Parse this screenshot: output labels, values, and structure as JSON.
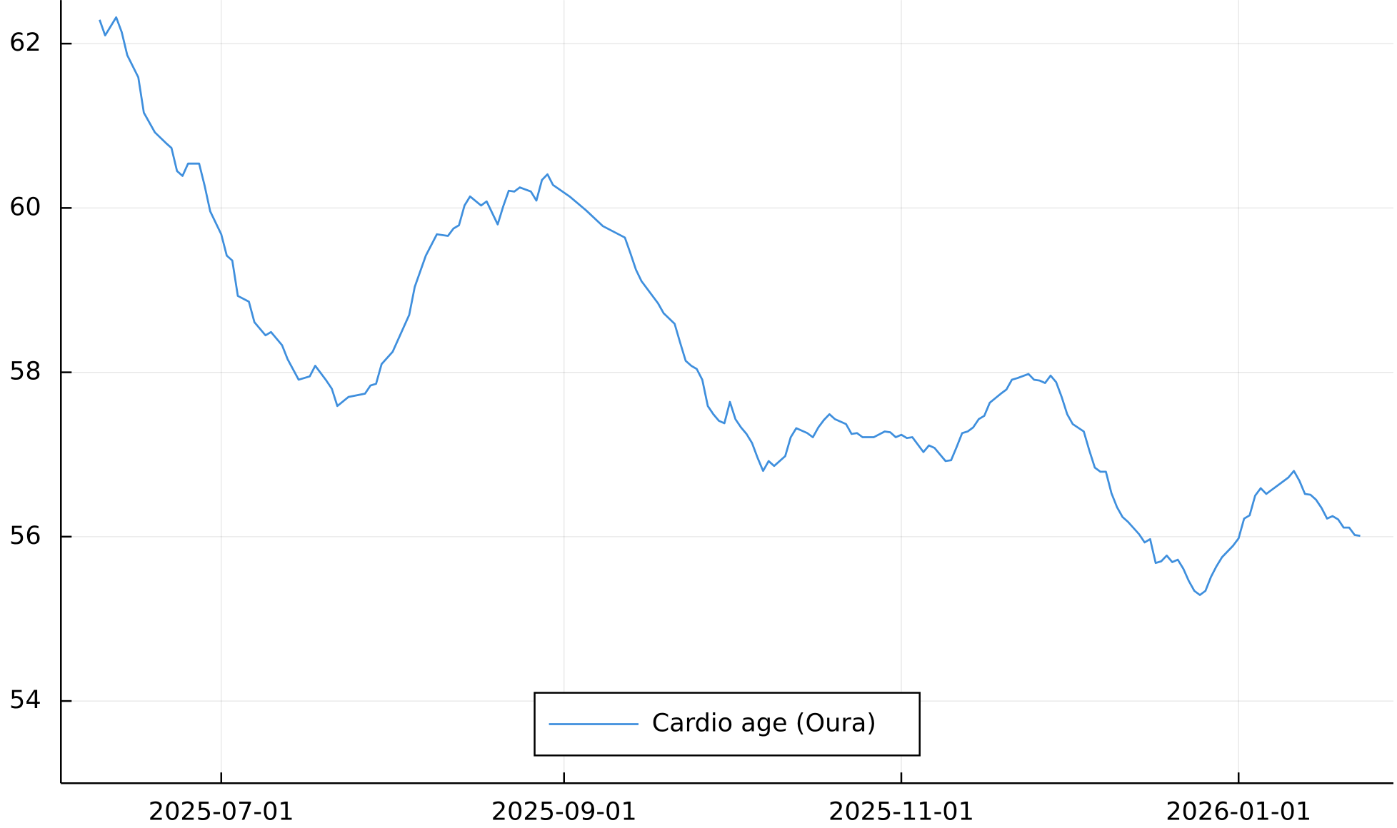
{
  "chart_data": {
    "type": "line",
    "legend": "bottom",
    "grid": true,
    "xlim": [
      "2025-06-02",
      "2026-01-29"
    ],
    "xticks": [
      "2025-07-01",
      "2025-09-01",
      "2025-11-01",
      "2026-01-01"
    ],
    "ylim": [
      53.0,
      62.53
    ],
    "yticks": [
      54,
      56,
      58,
      60,
      62
    ],
    "x": [
      "2025-06-09",
      "2025-06-10",
      "2025-06-12",
      "2025-06-13",
      "2025-06-14",
      "2025-06-16",
      "2025-06-17",
      "2025-06-19",
      "2025-06-21",
      "2025-06-22",
      "2025-06-23",
      "2025-06-24",
      "2025-06-25",
      "2025-06-27",
      "2025-06-28",
      "2025-06-29",
      "2025-07-01",
      "2025-07-02",
      "2025-07-03",
      "2025-07-04",
      "2025-07-06",
      "2025-07-07",
      "2025-07-09",
      "2025-07-10",
      "2025-07-12",
      "2025-07-13",
      "2025-07-15",
      "2025-07-17",
      "2025-07-18",
      "2025-07-20",
      "2025-07-21",
      "2025-07-22",
      "2025-07-24",
      "2025-07-27",
      "2025-07-28",
      "2025-07-29",
      "2025-07-30",
      "2025-08-01",
      "2025-08-03",
      "2025-08-04",
      "2025-08-05",
      "2025-08-06",
      "2025-08-07",
      "2025-08-09",
      "2025-08-11",
      "2025-08-12",
      "2025-08-13",
      "2025-08-14",
      "2025-08-15",
      "2025-08-17",
      "2025-08-18",
      "2025-08-20",
      "2025-08-21",
      "2025-08-22",
      "2025-08-23",
      "2025-08-24",
      "2025-08-26",
      "2025-08-27",
      "2025-08-28",
      "2025-08-29",
      "2025-08-30",
      "2025-09-02",
      "2025-09-05",
      "2025-09-08",
      "2025-09-12",
      "2025-09-13",
      "2025-09-14",
      "2025-09-15",
      "2025-09-18",
      "2025-09-19",
      "2025-09-21",
      "2025-09-22",
      "2025-09-23",
      "2025-09-24",
      "2025-09-25",
      "2025-09-26",
      "2025-09-27",
      "2025-09-28",
      "2025-09-29",
      "2025-09-30",
      "2025-10-01",
      "2025-10-02",
      "2025-10-03",
      "2025-10-04",
      "2025-10-05",
      "2025-10-06",
      "2025-10-07",
      "2025-10-08",
      "2025-10-09",
      "2025-10-11",
      "2025-10-12",
      "2025-10-13",
      "2025-10-15",
      "2025-10-16",
      "2025-10-17",
      "2025-10-18",
      "2025-10-19",
      "2025-10-20",
      "2025-10-22",
      "2025-10-23",
      "2025-10-24",
      "2025-10-25",
      "2025-10-27",
      "2025-10-29",
      "2025-10-30",
      "2025-10-31",
      "2025-11-01",
      "2025-11-02",
      "2025-11-03",
      "2025-11-05",
      "2025-11-06",
      "2025-11-07",
      "2025-11-09",
      "2025-11-10",
      "2025-11-11",
      "2025-11-12",
      "2025-11-13",
      "2025-11-14",
      "2025-11-15",
      "2025-11-16",
      "2025-11-17",
      "2025-11-19",
      "2025-11-20",
      "2025-11-21",
      "2025-11-22",
      "2025-11-24",
      "2025-11-25",
      "2025-11-26",
      "2025-11-27",
      "2025-11-28",
      "2025-11-29",
      "2025-11-30",
      "2025-12-01",
      "2025-12-02",
      "2025-12-04",
      "2025-12-05",
      "2025-12-06",
      "2025-12-07",
      "2025-12-08",
      "2025-12-09",
      "2025-12-10",
      "2025-12-11",
      "2025-12-12",
      "2025-12-14",
      "2025-12-15",
      "2025-12-16",
      "2025-12-17",
      "2025-12-18",
      "2025-12-19",
      "2025-12-20",
      "2025-12-21",
      "2025-12-22",
      "2025-12-23",
      "2025-12-24",
      "2025-12-25",
      "2025-12-26",
      "2025-12-27",
      "2025-12-28",
      "2025-12-29",
      "2025-12-31",
      "2026-01-01",
      "2026-01-02",
      "2026-01-03",
      "2026-01-04",
      "2026-01-05",
      "2026-01-06",
      "2026-01-08",
      "2026-01-10",
      "2026-01-11",
      "2026-01-12",
      "2026-01-13",
      "2026-01-14",
      "2026-01-15",
      "2026-01-16",
      "2026-01-17",
      "2026-01-18",
      "2026-01-19",
      "2026-01-20",
      "2026-01-21",
      "2026-01-22",
      "2026-01-23"
    ],
    "series": [
      {
        "name": "Cardio age (Oura)",
        "color": "#3f8fdd",
        "values": [
          62.29,
          62.1,
          62.32,
          62.14,
          61.86,
          61.59,
          61.16,
          60.92,
          60.79,
          60.73,
          60.45,
          60.39,
          60.54,
          60.54,
          60.27,
          59.96,
          59.68,
          59.42,
          59.36,
          58.93,
          58.86,
          58.61,
          58.45,
          58.49,
          58.33,
          58.16,
          57.91,
          57.95,
          58.08,
          57.9,
          57.8,
          57.59,
          57.7,
          57.74,
          57.84,
          57.86,
          58.1,
          58.25,
          58.55,
          58.7,
          59.04,
          59.23,
          59.42,
          59.68,
          59.66,
          59.75,
          59.79,
          60.03,
          60.14,
          60.03,
          60.08,
          59.8,
          60.02,
          60.21,
          60.2,
          60.25,
          60.2,
          60.09,
          60.34,
          60.41,
          60.28,
          60.14,
          59.97,
          59.78,
          59.64,
          59.45,
          59.25,
          59.11,
          58.84,
          58.72,
          58.59,
          58.36,
          58.14,
          58.08,
          58.04,
          57.91,
          57.59,
          57.49,
          57.41,
          57.38,
          57.64,
          57.43,
          57.33,
          57.25,
          57.14,
          56.96,
          56.8,
          56.92,
          56.86,
          56.98,
          57.21,
          57.32,
          57.26,
          57.21,
          57.33,
          57.42,
          57.49,
          57.43,
          57.37,
          57.25,
          57.26,
          57.21,
          57.21,
          57.28,
          57.27,
          57.21,
          57.24,
          57.2,
          57.21,
          57.03,
          57.11,
          57.08,
          56.92,
          56.93,
          57.09,
          57.26,
          57.28,
          57.33,
          57.43,
          57.47,
          57.63,
          57.74,
          57.79,
          57.91,
          57.93,
          57.98,
          57.91,
          57.9,
          57.87,
          57.96,
          57.88,
          57.7,
          57.49,
          57.37,
          57.28,
          57.05,
          56.84,
          56.79,
          56.79,
          56.53,
          56.36,
          56.24,
          56.18,
          56.03,
          55.93,
          55.97,
          55.68,
          55.7,
          55.77,
          55.69,
          55.72,
          55.61,
          55.46,
          55.34,
          55.29,
          55.34,
          55.51,
          55.64,
          55.75,
          55.89,
          55.98,
          56.22,
          56.26,
          56.5,
          56.59,
          56.52,
          56.62,
          56.72,
          56.8,
          56.68,
          56.52,
          56.51,
          56.45,
          56.35,
          56.22,
          56.25,
          56.21,
          56.11,
          56.11,
          56.02,
          56.01
        ]
      }
    ]
  }
}
